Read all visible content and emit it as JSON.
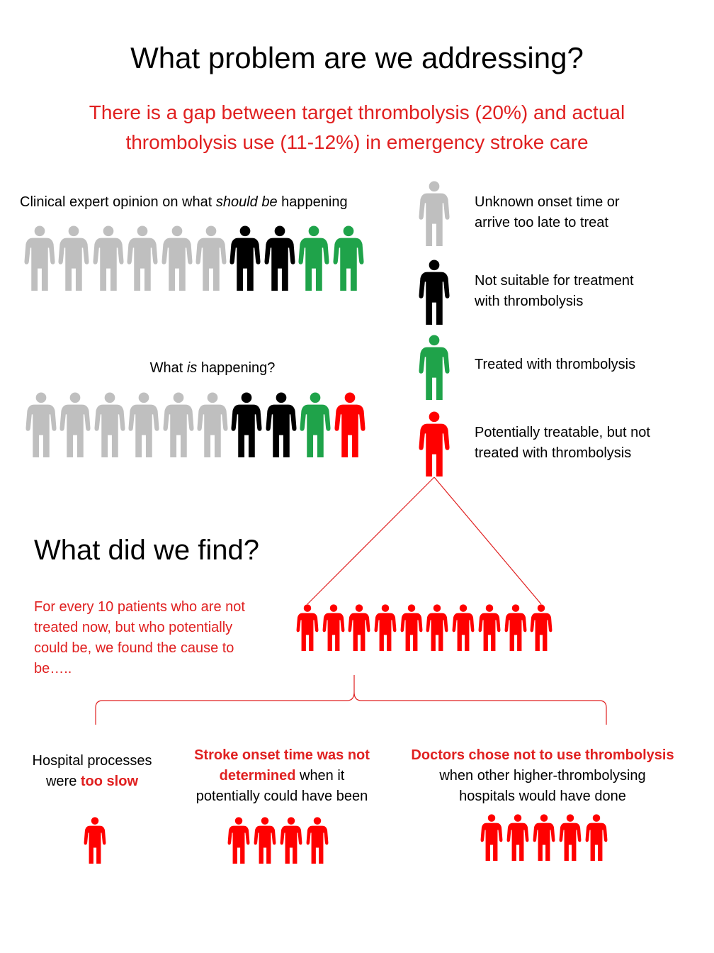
{
  "title": "What problem are we addressing?",
  "subtitle_line1": "There is a gap between target thrombolysis (20%) and actual",
  "subtitle_line2": "thrombolysis use (11-12%) in emergency stroke care",
  "should": {
    "label_pre": "Clinical expert opinion on what ",
    "label_em": "should be",
    "label_post": " happening",
    "people": [
      "gray",
      "gray",
      "gray",
      "gray",
      "gray",
      "gray",
      "black",
      "black",
      "green",
      "green"
    ]
  },
  "is": {
    "label_pre": "What ",
    "label_em": "is",
    "label_post": " happening?",
    "people": [
      "gray",
      "gray",
      "gray",
      "gray",
      "gray",
      "gray",
      "black",
      "black",
      "green",
      "red"
    ]
  },
  "legend": [
    {
      "color": "gray",
      "line1": "Unknown onset time or",
      "line2": "arrive too late to treat"
    },
    {
      "color": "black",
      "line1": "Not suitable for treatment",
      "line2": "with thrombolysis"
    },
    {
      "color": "green",
      "line1": "Treated with thrombolysis",
      "line2": ""
    },
    {
      "color": "red",
      "line1": "Potentially treatable, but not",
      "line2": "treated with thrombolysis"
    }
  ],
  "colors": {
    "gray": "#bfbfbf",
    "black": "#000000",
    "green": "#1fa34a",
    "red": "#ff0000",
    "accent_text": "#e02020"
  },
  "find": {
    "heading": "What did we find?",
    "text_lines": [
      "For every 10 patients who are not",
      "treated now, but who potentially",
      "could be, we found the cause to",
      "be….."
    ],
    "group_count": 10
  },
  "causes": [
    {
      "lines": [
        [
          {
            "t": "Hospital processes",
            "b": false
          }
        ],
        [
          {
            "t": "were ",
            "b": false
          },
          {
            "t": "too slow",
            "b": true
          }
        ]
      ],
      "count": 1
    },
    {
      "lines": [
        [
          {
            "t": "Stroke onset time was not",
            "b": true
          }
        ],
        [
          {
            "t": "determined",
            "b": true
          },
          {
            "t": " when it",
            "b": false
          }
        ],
        [
          {
            "t": "potentially could have been",
            "b": false
          }
        ]
      ],
      "count": 4
    },
    {
      "lines": [
        [
          {
            "t": "Doctors chose not to use thrombolysis",
            "b": true
          }
        ],
        [
          {
            "t": "when other higher-thrombolysing",
            "b": false
          }
        ],
        [
          {
            "t": "hospitals would have done",
            "b": false
          }
        ]
      ],
      "count": 5
    }
  ]
}
